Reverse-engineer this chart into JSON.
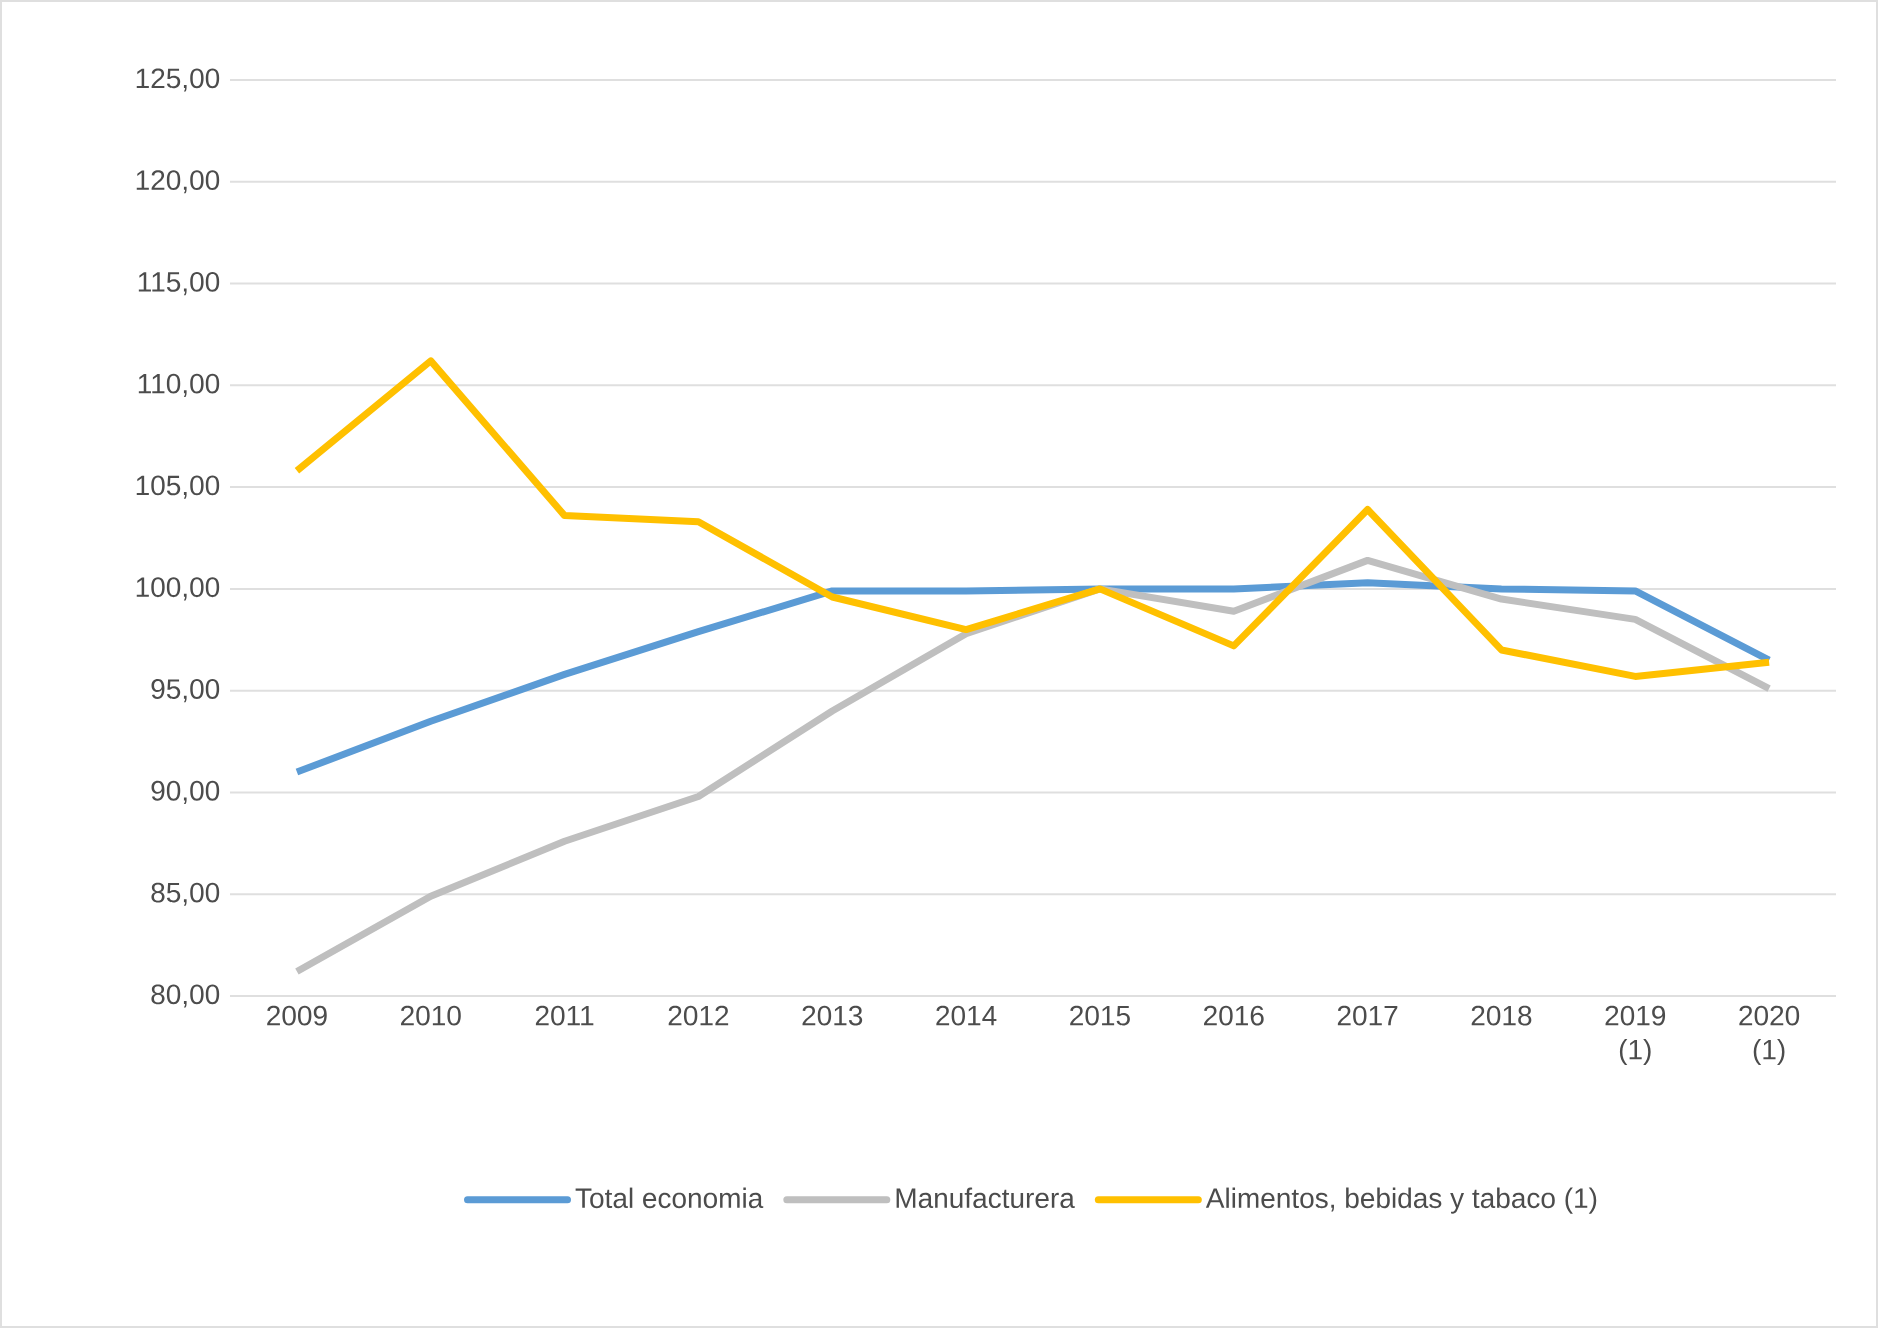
{
  "chart_data": {
    "type": "line",
    "categories": [
      "2009",
      "2010",
      "2011",
      "2012",
      "2013",
      "2014",
      "2015",
      "2016",
      "2017",
      "2018",
      "2019 (1)",
      "2020 (1)"
    ],
    "series": [
      {
        "name": "Total economia",
        "color": "#5b9bd5",
        "values": [
          91.0,
          93.5,
          95.8,
          97.9,
          99.9,
          99.9,
          100.0,
          100.0,
          100.3,
          100.0,
          99.9,
          96.5
        ]
      },
      {
        "name": "Manufacturera",
        "color": "#bfbfbf",
        "values": [
          81.2,
          84.9,
          87.6,
          89.8,
          94.0,
          97.8,
          100.0,
          98.9,
          101.4,
          99.5,
          98.5,
          95.1
        ]
      },
      {
        "name": "Alimentos, bebidas y tabaco (1)",
        "color": "#ffc000",
        "values": [
          105.8,
          111.2,
          103.6,
          103.3,
          99.6,
          98.0,
          100.0,
          97.2,
          103.9,
          97.0,
          95.7,
          96.4
        ]
      }
    ],
    "ylim": [
      80,
      125
    ],
    "yticks": [
      {
        "value": 80,
        "label": "80,00"
      },
      {
        "value": 85,
        "label": "85,00"
      },
      {
        "value": 90,
        "label": "90,00"
      },
      {
        "value": 95,
        "label": "95,00"
      },
      {
        "value": 100,
        "label": "100,00"
      },
      {
        "value": 105,
        "label": "105,00"
      },
      {
        "value": 110,
        "label": "110,00"
      },
      {
        "value": 115,
        "label": "115,00"
      },
      {
        "value": 120,
        "label": "120,00"
      },
      {
        "value": 125,
        "label": "125,00"
      }
    ],
    "grid": "y",
    "legend": "bottom",
    "marker": "none",
    "line_style": "solid"
  }
}
